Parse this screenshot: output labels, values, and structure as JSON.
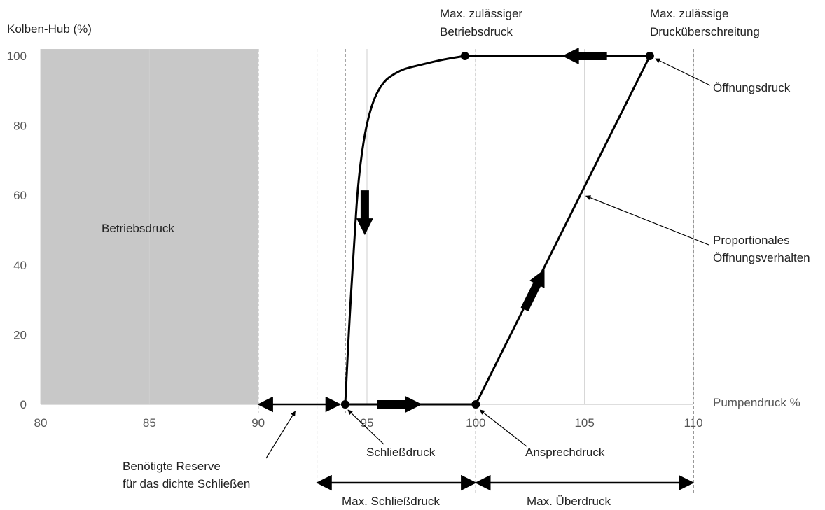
{
  "chart_data": {
    "type": "line",
    "xlabel": "Pumpendruck %",
    "ylabel": "Kolben-Hub (%)",
    "xlim": [
      80,
      110
    ],
    "ylim": [
      0,
      102
    ],
    "x_ticks": [
      80,
      85,
      90,
      95,
      100,
      105,
      110
    ],
    "y_ticks": [
      0,
      20,
      40,
      60,
      80,
      100
    ],
    "grid": "vertical",
    "shaded_region": {
      "label": "Betriebsdruck",
      "x": [
        80,
        90
      ],
      "y": [
        0,
        102
      ],
      "color": "#c8c8c8"
    },
    "dashed_lines": [
      90,
      92.7,
      94,
      100,
      110
    ],
    "series": [
      {
        "role": "opening",
        "points": [
          [
            100,
            0
          ],
          [
            108,
            100
          ]
        ]
      },
      {
        "role": "top",
        "points": [
          [
            108,
            100
          ],
          [
            99.5,
            100
          ]
        ]
      },
      {
        "role": "closing",
        "points": [
          [
            99.5,
            100
          ],
          [
            98.5,
            99
          ],
          [
            97.5,
            97.5
          ],
          [
            96.5,
            96
          ],
          [
            95.6,
            92
          ],
          [
            95,
            82
          ],
          [
            94.6,
            65
          ],
          [
            94.4,
            45
          ],
          [
            94.2,
            25
          ],
          [
            94,
            0
          ]
        ]
      },
      {
        "role": "bottom",
        "points": [
          [
            94,
            0
          ],
          [
            100,
            0
          ]
        ]
      }
    ],
    "key_points": [
      [
        94,
        0
      ],
      [
        100,
        0
      ],
      [
        99.5,
        100
      ],
      [
        108,
        100
      ]
    ],
    "direction_arrows": [
      {
        "x": 96.5,
        "y": 0,
        "dir": "right"
      },
      {
        "x": 105,
        "y": 100,
        "dir": "left"
      },
      {
        "x": 94.9,
        "y": 55,
        "dir": "down"
      },
      {
        "x": 102.7,
        "y": 33,
        "dir": "up-right"
      }
    ],
    "annotations": [
      {
        "id": "schliessdruck",
        "text": "Schließdruck",
        "target": [
          94,
          0
        ]
      },
      {
        "id": "ansprechdruck",
        "text": "Ansprechdruck",
        "target": [
          100,
          0
        ]
      },
      {
        "id": "oeffnungsdruck",
        "text": "Öffnungsdruck",
        "target": [
          108,
          100
        ]
      },
      {
        "id": "proportional",
        "text": [
          "Proportionales",
          "Öffnungsverhalten"
        ],
        "target": [
          105,
          60
        ]
      },
      {
        "id": "max_betriebsdruck",
        "text": [
          "Max. zulässiger",
          "Betriebsdruck"
        ]
      },
      {
        "id": "max_drueberschreitung",
        "text": [
          "Max. zulässige",
          "Drucküberschreitung"
        ]
      },
      {
        "id": "reserve",
        "text": [
          "Benötigte Reserve",
          "für das dichte Schließen"
        ],
        "target": [
          91.7,
          -2
        ]
      }
    ],
    "spans": [
      {
        "id": "reserve_span",
        "range": [
          90,
          94
        ]
      },
      {
        "id": "max_schliessdruck",
        "text": "Max. Schließdruck",
        "range": [
          92.7,
          100
        ]
      },
      {
        "id": "max_ueberdruck",
        "text": "Max. Überdruck",
        "range": [
          100,
          110
        ]
      }
    ]
  }
}
